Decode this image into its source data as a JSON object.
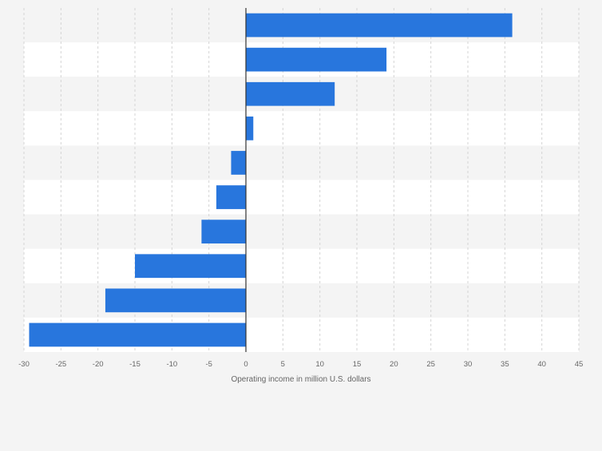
{
  "chart_data": {
    "type": "bar",
    "orientation": "horizontal",
    "categories": [
      "",
      "",
      "",
      "",
      "",
      "",
      "",
      "",
      "",
      ""
    ],
    "values": [
      36,
      19,
      12,
      1,
      -2,
      -4,
      -6,
      -15,
      -19,
      -29.3
    ],
    "xlabel": "Operating income in million U.S. dollars",
    "ylabel": "",
    "xlim": [
      -30,
      45
    ],
    "xticks": [
      -30,
      -25,
      -20,
      -15,
      -10,
      -5,
      0,
      5,
      10,
      15,
      20,
      25,
      30,
      35,
      40,
      45
    ],
    "grid": "vertical",
    "legend": "none",
    "colors": {
      "bar": "#2876dd",
      "band_light": "#f4f4f4",
      "band_white": "#ffffff",
      "grid": "#d4d4d4",
      "zero_line": "#333333",
      "text": "#666666"
    }
  }
}
